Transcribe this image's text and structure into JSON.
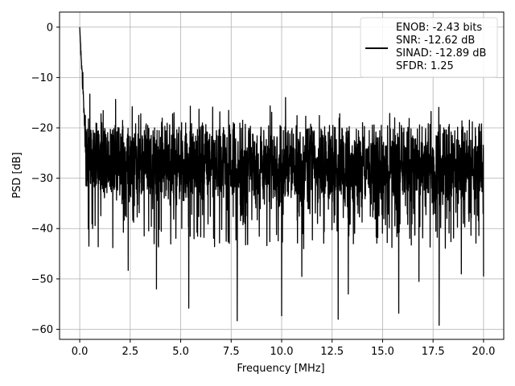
{
  "chart_data": {
    "type": "line",
    "title": "",
    "xlabel": "Frequency [MHz]",
    "ylabel": "PSD [dB]",
    "xlim": [
      -1.0,
      21.0
    ],
    "ylim": [
      -62.0,
      3.0
    ],
    "grid": true,
    "legend_position": "top-right",
    "x_ticks": [
      0.0,
      2.5,
      5.0,
      7.5,
      10.0,
      12.5,
      15.0,
      17.5,
      20.0
    ],
    "x_tick_labels": [
      "0.0",
      "2.5",
      "5.0",
      "7.5",
      "10.0",
      "12.5",
      "15.0",
      "17.5",
      "20.0"
    ],
    "y_ticks": [
      0,
      -10,
      -20,
      -30,
      -40,
      -50,
      -60
    ],
    "y_tick_labels": [
      "0",
      "−10",
      "−20",
      "−30",
      "−40",
      "−50",
      "−60"
    ],
    "line_color": "#000000",
    "series": [
      {
        "legend_lines": [
          "ENOB: -2.43 bits",
          "SNR: -12.62 dB",
          "SINAD: -12.89 dB",
          "SFDR: 1.25"
        ],
        "x_range": [
          0.0,
          20.0
        ],
        "peak": {
          "x": 0.0,
          "y": 0.0
        },
        "noise_floor_mean": -28,
        "noise_floor_upper": -22,
        "noise_floor_lower": -35,
        "deep_dips": [
          {
            "x": 0.45,
            "y": -43.5
          },
          {
            "x": 2.4,
            "y": -48.3
          },
          {
            "x": 3.8,
            "y": -52.0
          },
          {
            "x": 5.4,
            "y": -55.8
          },
          {
            "x": 7.8,
            "y": -58.3
          },
          {
            "x": 10.0,
            "y": -57.3
          },
          {
            "x": 11.0,
            "y": -49.5
          },
          {
            "x": 12.8,
            "y": -58.0
          },
          {
            "x": 13.3,
            "y": -53.0
          },
          {
            "x": 15.8,
            "y": -56.8
          },
          {
            "x": 16.8,
            "y": -50.5
          },
          {
            "x": 17.8,
            "y": -59.2
          },
          {
            "x": 18.9,
            "y": -49.0
          },
          {
            "x": 20.0,
            "y": -49.5
          }
        ],
        "peaks": [
          {
            "x": 0.05,
            "y": -5.5
          },
          {
            "x": 0.15,
            "y": -9.0
          },
          {
            "x": 0.5,
            "y": -13.3
          },
          {
            "x": 2.6,
            "y": -15.8
          },
          {
            "x": 10.0,
            "y": -15.3
          },
          {
            "x": 18.3,
            "y": -19.3
          },
          {
            "x": 20.0,
            "y": -18.8
          }
        ]
      }
    ]
  }
}
